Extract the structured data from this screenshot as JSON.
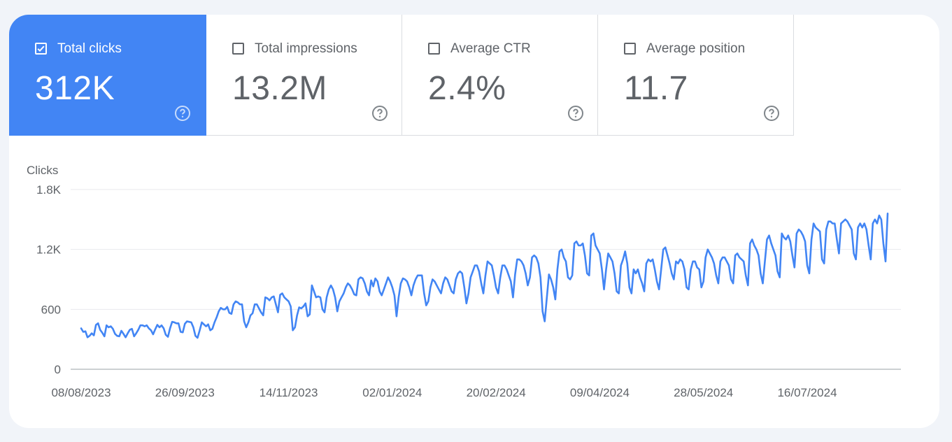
{
  "metrics": [
    {
      "label": "Total clicks",
      "value": "312K",
      "active": true
    },
    {
      "label": "Total impressions",
      "value": "13.2M",
      "active": false
    },
    {
      "label": "Average CTR",
      "value": "2.4%",
      "active": false
    },
    {
      "label": "Average position",
      "value": "11.7",
      "active": false
    }
  ],
  "icons": {
    "help": "help-circle-icon",
    "check": "checkmark-icon"
  },
  "colors": {
    "accent": "#4285f4",
    "line": "#4285f4",
    "muted": "#5f6368",
    "grid": "#e8eaed"
  },
  "chart_data": {
    "type": "line",
    "ylabel": "Clicks",
    "ylim": [
      0,
      1800
    ],
    "yticks": [
      0,
      600,
      1200,
      1800
    ],
    "yticklabels": [
      "0",
      "600",
      "1.2K",
      "1.8K"
    ],
    "xticklabels": [
      "08/08/2023",
      "26/09/2023",
      "14/11/2023",
      "02/01/2024",
      "20/02/2024",
      "09/04/2024",
      "28/05/2024",
      "16/07/2024"
    ],
    "x_start": "08/08/2023",
    "x_end": "31/07/2024",
    "grid": true,
    "series": [
      {
        "values": [
          410,
          375,
          380,
          320,
          335,
          360,
          340,
          445,
          460,
          395,
          365,
          330,
          440,
          420,
          430,
          405,
          355,
          335,
          330,
          385,
          355,
          320,
          360,
          395,
          405,
          330,
          360,
          395,
          440,
          440,
          430,
          440,
          410,
          390,
          350,
          400,
          445,
          420,
          440,
          410,
          345,
          325,
          410,
          475,
          470,
          460,
          460,
          375,
          370,
          455,
          480,
          475,
          470,
          420,
          335,
          315,
          390,
          470,
          450,
          430,
          450,
          390,
          405,
          470,
          520,
          580,
          615,
          600,
          600,
          625,
          565,
          555,
          650,
          680,
          670,
          650,
          650,
          480,
          420,
          470,
          540,
          560,
          650,
          650,
          610,
          570,
          540,
          720,
          710,
          690,
          720,
          730,
          650,
          570,
          745,
          760,
          720,
          700,
          680,
          630,
          390,
          420,
          540,
          620,
          610,
          630,
          660,
          530,
          550,
          840,
          780,
          720,
          730,
          720,
          600,
          570,
          720,
          800,
          840,
          800,
          720,
          580,
          680,
          720,
          760,
          820,
          860,
          840,
          800,
          750,
          740,
          900,
          920,
          910,
          860,
          780,
          740,
          890,
          830,
          910,
          880,
          780,
          740,
          800,
          860,
          920,
          880,
          820,
          740,
          530,
          720,
          860,
          910,
          900,
          880,
          820,
          740,
          840,
          900,
          940,
          940,
          940,
          760,
          640,
          680,
          820,
          900,
          880,
          840,
          800,
          760,
          860,
          920,
          900,
          840,
          780,
          760,
          900,
          960,
          980,
          960,
          820,
          660,
          760,
          920,
          980,
          1040,
          1040,
          980,
          860,
          760,
          940,
          1080,
          1060,
          1040,
          940,
          820,
          760,
          920,
          1040,
          1040,
          1000,
          940,
          880,
          720,
          950,
          1100,
          1100,
          1080,
          1040,
          960,
          840,
          920,
          1120,
          1140,
          1120,
          1060,
          920,
          580,
          480,
          720,
          950,
          900,
          820,
          700,
          1000,
          1180,
          1200,
          1120,
          1080,
          920,
          900,
          940,
          1260,
          1280,
          1240,
          1240,
          1260,
          1140,
          960,
          940,
          1340,
          1360,
          1240,
          1200,
          1160,
          1000,
          800,
          1000,
          1160,
          1120,
          1080,
          960,
          780,
          760,
          1040,
          1100,
          1180,
          1060,
          820,
          760,
          1000,
          960,
          1000,
          920,
          860,
          780,
          1060,
          1100,
          1080,
          1100,
          1000,
          880,
          800,
          1000,
          1200,
          1220,
          1140,
          1060,
          960,
          900,
          1080,
          1060,
          1100,
          1080,
          1000,
          820,
          800,
          1000,
          1080,
          1080,
          1020,
          1000,
          820,
          880,
          1120,
          1200,
          1160,
          1120,
          1060,
          940,
          860,
          1080,
          1120,
          1120,
          1080,
          1040,
          900,
          860,
          1140,
          1160,
          1120,
          1100,
          1080,
          940,
          840,
          1260,
          1300,
          1240,
          1200,
          1140,
          960,
          860,
          1080,
          1300,
          1340,
          1260,
          1200,
          1140,
          980,
          920,
          1360,
          1320,
          1300,
          1340,
          1280,
          1140,
          1020,
          1360,
          1400,
          1380,
          1340,
          1280,
          1040,
          960,
          1300,
          1460,
          1420,
          1400,
          1380,
          1100,
          1060,
          1400,
          1480,
          1480,
          1460,
          1460,
          1300,
          1160,
          1460,
          1480,
          1500,
          1480,
          1440,
          1400,
          1160,
          1100,
          1420,
          1460,
          1420,
          1460,
          1400,
          1240,
          1100,
          1460,
          1500,
          1460,
          1540,
          1500,
          1260,
          1080,
          1560
        ]
      }
    ]
  }
}
